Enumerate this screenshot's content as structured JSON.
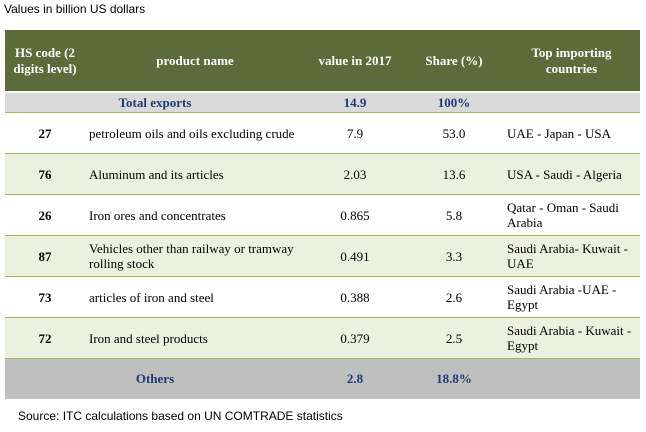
{
  "caption": "Values in billion US dollars",
  "source": "Source: ITC calculations based on UN COMTRADE statistics",
  "headers": {
    "hs_code": "HS code (2 digits level)",
    "product": "product name",
    "value": "value in 2017",
    "share": "Share (%)",
    "countries": "Top importing countries"
  },
  "total": {
    "label": "Total exports",
    "value": "14.9",
    "share": "100%"
  },
  "rows": [
    {
      "code": "27",
      "product": "petroleum oils and oils excluding crude",
      "value": "7.9",
      "share": "53.0",
      "countries": "UAE - Japan - USA"
    },
    {
      "code": "76",
      "product": "Aluminum and its articles",
      "value": "2.03",
      "share": "13.6",
      "countries": "USA - Saudi - Algeria"
    },
    {
      "code": "26",
      "product": "Iron ores and concentrates",
      "value": "0.865",
      "share": "5.8",
      "countries": "Qatar - Oman - Saudi Arabia"
    },
    {
      "code": "87",
      "product": "Vehicles other than railway or tramway rolling stock",
      "value": "0.491",
      "share": "3.3",
      "countries": "Saudi Arabia- Kuwait - UAE"
    },
    {
      "code": "73",
      "product": "articles of iron and steel",
      "value": "0.388",
      "share": "2.6",
      "countries": "Saudi Arabia -UAE - Egypt"
    },
    {
      "code": "72",
      "product": "Iron and steel products",
      "value": "0.379",
      "share": "2.5",
      "countries": "Saudi Arabia - Kuwait - Egypt"
    }
  ],
  "others": {
    "label": "Others",
    "value": "2.8",
    "share": "18.8%"
  }
}
